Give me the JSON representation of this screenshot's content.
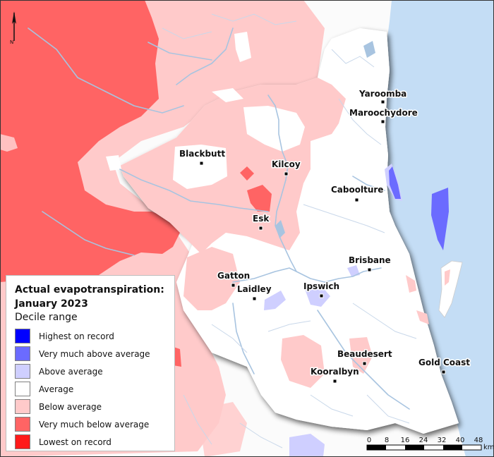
{
  "north_arrow": {
    "label": "N"
  },
  "legend": {
    "title_line1": "Actual evapotranspiration:",
    "title_line2": "January 2023",
    "subtitle": "Decile range",
    "items": [
      {
        "label": "Highest on record",
        "color": "#0000ff"
      },
      {
        "label": "Very much above average",
        "color": "#6b6bff"
      },
      {
        "label": "Above average",
        "color": "#cfcfff"
      },
      {
        "label": "Average",
        "color": "#ffffff"
      },
      {
        "label": "Below average",
        "color": "#ffcaca"
      },
      {
        "label": "Very much below average",
        "color": "#ff6464"
      },
      {
        "label": "Lowest on record",
        "color": "#ff1a1a"
      }
    ]
  },
  "towns": [
    {
      "name": "Yaroomba"
    },
    {
      "name": "Maroochydore"
    },
    {
      "name": "Blackbutt"
    },
    {
      "name": "Kilcoy"
    },
    {
      "name": "Caboolture"
    },
    {
      "name": "Esk"
    },
    {
      "name": "Brisbane"
    },
    {
      "name": "Gatton"
    },
    {
      "name": "Laidley"
    },
    {
      "name": "Ipswich"
    },
    {
      "name": "Beaudesert"
    },
    {
      "name": "Gold Coast"
    },
    {
      "name": "Kooralbyn"
    }
  ],
  "scale_bar": {
    "ticks": [
      "0",
      "8",
      "16",
      "24",
      "32",
      "40",
      "48"
    ],
    "unit": "km"
  },
  "colors": {
    "ocean": "#c4ddf5",
    "water": "#a8c4e0",
    "study_region": "#ffffff",
    "outside_region": "#fbfbfb"
  }
}
